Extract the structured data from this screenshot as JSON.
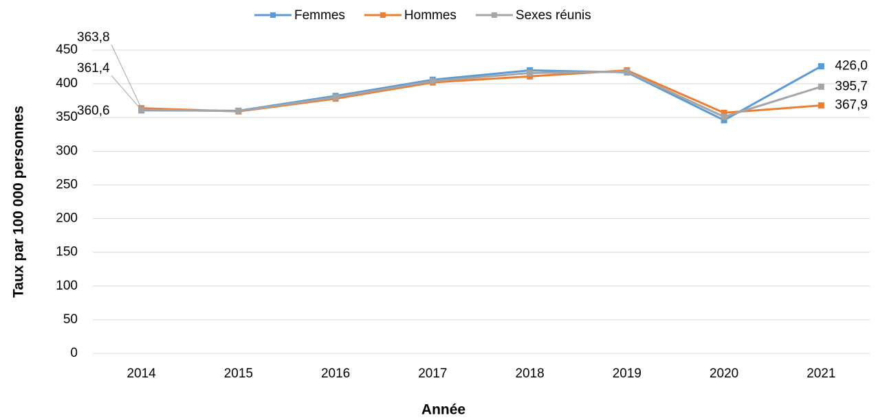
{
  "chart_data": {
    "type": "line",
    "x_label": "Année",
    "y_label": "Taux par 100 000 personnes",
    "categories": [
      "2014",
      "2015",
      "2016",
      "2017",
      "2018",
      "2019",
      "2020",
      "2021"
    ],
    "series": [
      {
        "name": "Femmes",
        "color": "#5b9bd5",
        "values": [
          360.6,
          360,
          382,
          406,
          420,
          417,
          346,
          426.0
        ],
        "value_labels": [
          "360,6",
          null,
          null,
          null,
          null,
          null,
          null,
          "426,0"
        ]
      },
      {
        "name": "Hommes",
        "color": "#ed7d31",
        "values": [
          363.8,
          359,
          378,
          402,
          411,
          420,
          357,
          367.9
        ],
        "value_labels": [
          "363,8",
          null,
          null,
          null,
          null,
          null,
          null,
          "367,9"
        ]
      },
      {
        "name": "Sexes réunis",
        "color": "#a5a5a5",
        "values": [
          361.4,
          359.5,
          380,
          404,
          416,
          418,
          351,
          395.7
        ],
        "value_labels": [
          "361,4",
          null,
          null,
          null,
          null,
          null,
          null,
          "395,7"
        ]
      }
    ],
    "ylim": [
      0,
      450
    ],
    "yticks": [
      0,
      50,
      100,
      150,
      200,
      250,
      300,
      350,
      400,
      450
    ],
    "grid": true,
    "legend": "top"
  }
}
